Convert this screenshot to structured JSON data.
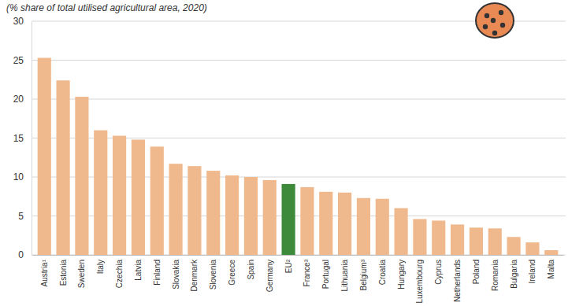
{
  "chart_data": {
    "type": "bar",
    "subtitle": "(% share of total utilised agricultural area, 2020)",
    "categories": [
      "Austria¹",
      "Estonia",
      "Sweden",
      "Italy",
      "Czechia",
      "Latvia",
      "Finland",
      "Slovakia",
      "Denmark",
      "Slovenia",
      "Greece",
      "Spain",
      "Germany",
      "EU²",
      "France³",
      "Portugal",
      "Lithuania",
      "Belgium³",
      "Croatia",
      "Hungary",
      "Luxembourg",
      "Cyprus",
      "Netherlands",
      "Poland",
      "Romania",
      "Bulgaria",
      "Ireland",
      "Malta"
    ],
    "values": [
      25.3,
      22.4,
      20.3,
      16.0,
      15.3,
      14.8,
      13.9,
      11.7,
      11.4,
      10.8,
      10.2,
      10.0,
      9.6,
      9.1,
      8.7,
      8.1,
      8.0,
      7.3,
      7.2,
      6.0,
      4.6,
      4.4,
      3.9,
      3.5,
      3.4,
      2.3,
      1.6,
      0.6
    ],
    "colors": [
      "#f0b98d",
      "#f0b98d",
      "#f0b98d",
      "#f0b98d",
      "#f0b98d",
      "#f0b98d",
      "#f0b98d",
      "#f0b98d",
      "#f0b98d",
      "#f0b98d",
      "#f0b98d",
      "#f0b98d",
      "#f0b98d",
      "#3e8a3b",
      "#f0b98d",
      "#f0b98d",
      "#f0b98d",
      "#f0b98d",
      "#f0b98d",
      "#f0b98d",
      "#f0b98d",
      "#f0b98d",
      "#f0b98d",
      "#f0b98d",
      "#f0b98d",
      "#f0b98d",
      "#f0b98d",
      "#f0b98d"
    ],
    "ylim": [
      0,
      30
    ],
    "yticks": [
      0,
      5,
      10,
      15,
      20,
      25,
      30
    ],
    "grid": true
  }
}
